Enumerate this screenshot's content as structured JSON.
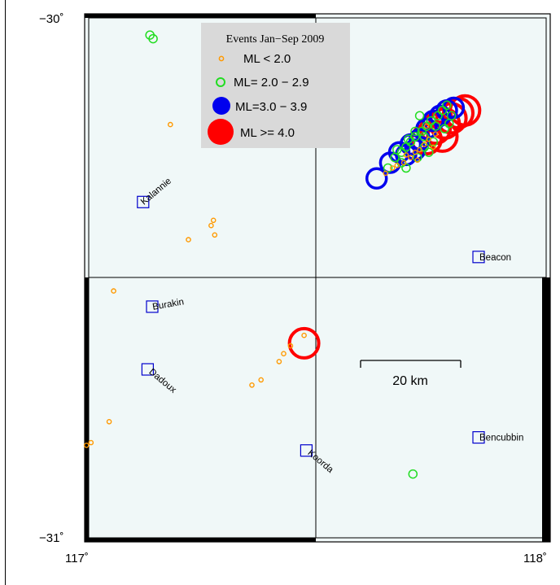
{
  "map": {
    "axis": {
      "lat_top": "−30˚",
      "lat_bottom": "−31˚",
      "lon_left": "117˚",
      "lon_right": "118˚"
    },
    "bounds": {
      "lon_min": 117.0,
      "lon_max": 118.0,
      "lat_min": -31.0,
      "lat_max": -30.0
    },
    "colors": {
      "land": "#f0f8f8",
      "frame": "#000000",
      "town_marker": "#0000cc",
      "legend_bg": "#d9d9d9",
      "small": "#ff9900",
      "ml2": "#22dd22",
      "ml3": "#0000ee",
      "ml4": "#ff0000"
    },
    "legend": {
      "title": "Events Jan−Sep 2009",
      "items": [
        {
          "label": "ML < 2.0",
          "color": "#ff9900",
          "icon": "small-circle-icon"
        },
        {
          "label": "ML= 2.0 − 2.9",
          "color": "#22dd22",
          "icon": "medium-circle-icon"
        },
        {
          "label": "ML=3.0  − 3.9",
          "color": "#0000ee",
          "icon": "large-circle-icon"
        },
        {
          "label": "ML >= 4.0",
          "color": "#ff0000",
          "icon": "xlarge-circle-icon"
        }
      ]
    },
    "scale_bar": {
      "label": "20 km"
    },
    "towns": [
      {
        "name": "Kalannie",
        "lon": 117.12,
        "lat": -30.355,
        "rotate": -40
      },
      {
        "name": "Beacon",
        "lon": 117.86,
        "lat": -30.46,
        "rotate": 0
      },
      {
        "name": "Burakin",
        "lon": 117.14,
        "lat": -30.555,
        "rotate": -10
      },
      {
        "name": "Dadoux",
        "lon": 117.13,
        "lat": -30.675,
        "rotate": 40
      },
      {
        "name": "Bencubbin",
        "lon": 117.86,
        "lat": -30.805,
        "rotate": 0
      },
      {
        "name": "Koorda",
        "lon": 117.48,
        "lat": -30.83,
        "rotate": 40
      }
    ],
    "events_small": [
      [
        117.18,
        -30.207
      ],
      [
        117.275,
        -30.39
      ],
      [
        117.27,
        -30.4
      ],
      [
        117.278,
        -30.418
      ],
      [
        117.22,
        -30.427
      ],
      [
        117.055,
        -30.525
      ],
      [
        117.475,
        -30.61
      ],
      [
        117.445,
        -30.63
      ],
      [
        117.43,
        -30.645
      ],
      [
        117.42,
        -30.66
      ],
      [
        117.38,
        -30.695
      ],
      [
        117.36,
        -30.705
      ],
      [
        117.045,
        -30.775
      ],
      [
        117.005,
        -30.815
      ],
      [
        116.995,
        -30.82
      ],
      [
        117.655,
        -30.3
      ],
      [
        117.67,
        -30.29
      ],
      [
        117.68,
        -30.285
      ],
      [
        117.695,
        -30.28
      ],
      [
        117.71,
        -30.27
      ],
      [
        117.72,
        -30.26
      ],
      [
        117.73,
        -30.255
      ],
      [
        117.74,
        -30.245
      ],
      [
        117.75,
        -30.235
      ],
      [
        117.765,
        -30.225
      ],
      [
        117.7,
        -30.265
      ],
      [
        117.725,
        -30.275
      ],
      [
        117.76,
        -30.25
      ],
      [
        117.745,
        -30.21
      ]
    ],
    "events_ml2": [
      [
        117.135,
        -30.036
      ],
      [
        117.142,
        -30.043
      ],
      [
        117.715,
        -30.875
      ],
      [
        117.66,
        -30.29
      ],
      [
        117.675,
        -30.27
      ],
      [
        117.69,
        -30.26
      ],
      [
        117.7,
        -30.25
      ],
      [
        117.71,
        -30.24
      ],
      [
        117.72,
        -30.23
      ],
      [
        117.735,
        -30.22
      ],
      [
        117.745,
        -30.21
      ],
      [
        117.755,
        -30.2
      ],
      [
        117.77,
        -30.19
      ],
      [
        117.78,
        -30.18
      ],
      [
        117.79,
        -30.17
      ],
      [
        117.8,
        -30.19
      ],
      [
        117.69,
        -30.28
      ],
      [
        117.7,
        -30.29
      ],
      [
        117.725,
        -30.27
      ],
      [
        117.75,
        -30.26
      ],
      [
        117.76,
        -30.24
      ],
      [
        117.74,
        -30.25
      ],
      [
        117.72,
        -30.22
      ],
      [
        117.73,
        -30.19
      ],
      [
        117.765,
        -30.21
      ],
      [
        117.785,
        -30.215
      ],
      [
        117.795,
        -30.205
      ],
      [
        117.68,
        -30.255
      ],
      [
        117.705,
        -30.235
      ],
      [
        117.74,
        -30.23
      ]
    ],
    "events_ml3": [
      [
        117.635,
        -30.31
      ],
      [
        117.665,
        -30.28
      ],
      [
        117.685,
        -30.26
      ],
      [
        117.71,
        -30.245
      ],
      [
        117.73,
        -30.235
      ],
      [
        117.745,
        -30.215
      ],
      [
        117.76,
        -30.2
      ],
      [
        117.775,
        -30.19
      ],
      [
        117.79,
        -30.18
      ],
      [
        117.805,
        -30.175
      ],
      [
        117.7,
        -30.265
      ],
      [
        117.72,
        -30.255
      ]
    ],
    "events_ml4": [
      [
        117.475,
        -30.625
      ],
      [
        117.745,
        -30.235
      ],
      [
        117.765,
        -30.215
      ],
      [
        117.785,
        -30.205
      ],
      [
        117.8,
        -30.195
      ],
      [
        117.815,
        -30.185
      ],
      [
        117.83,
        -30.18
      ],
      [
        117.78,
        -30.23
      ]
    ]
  }
}
